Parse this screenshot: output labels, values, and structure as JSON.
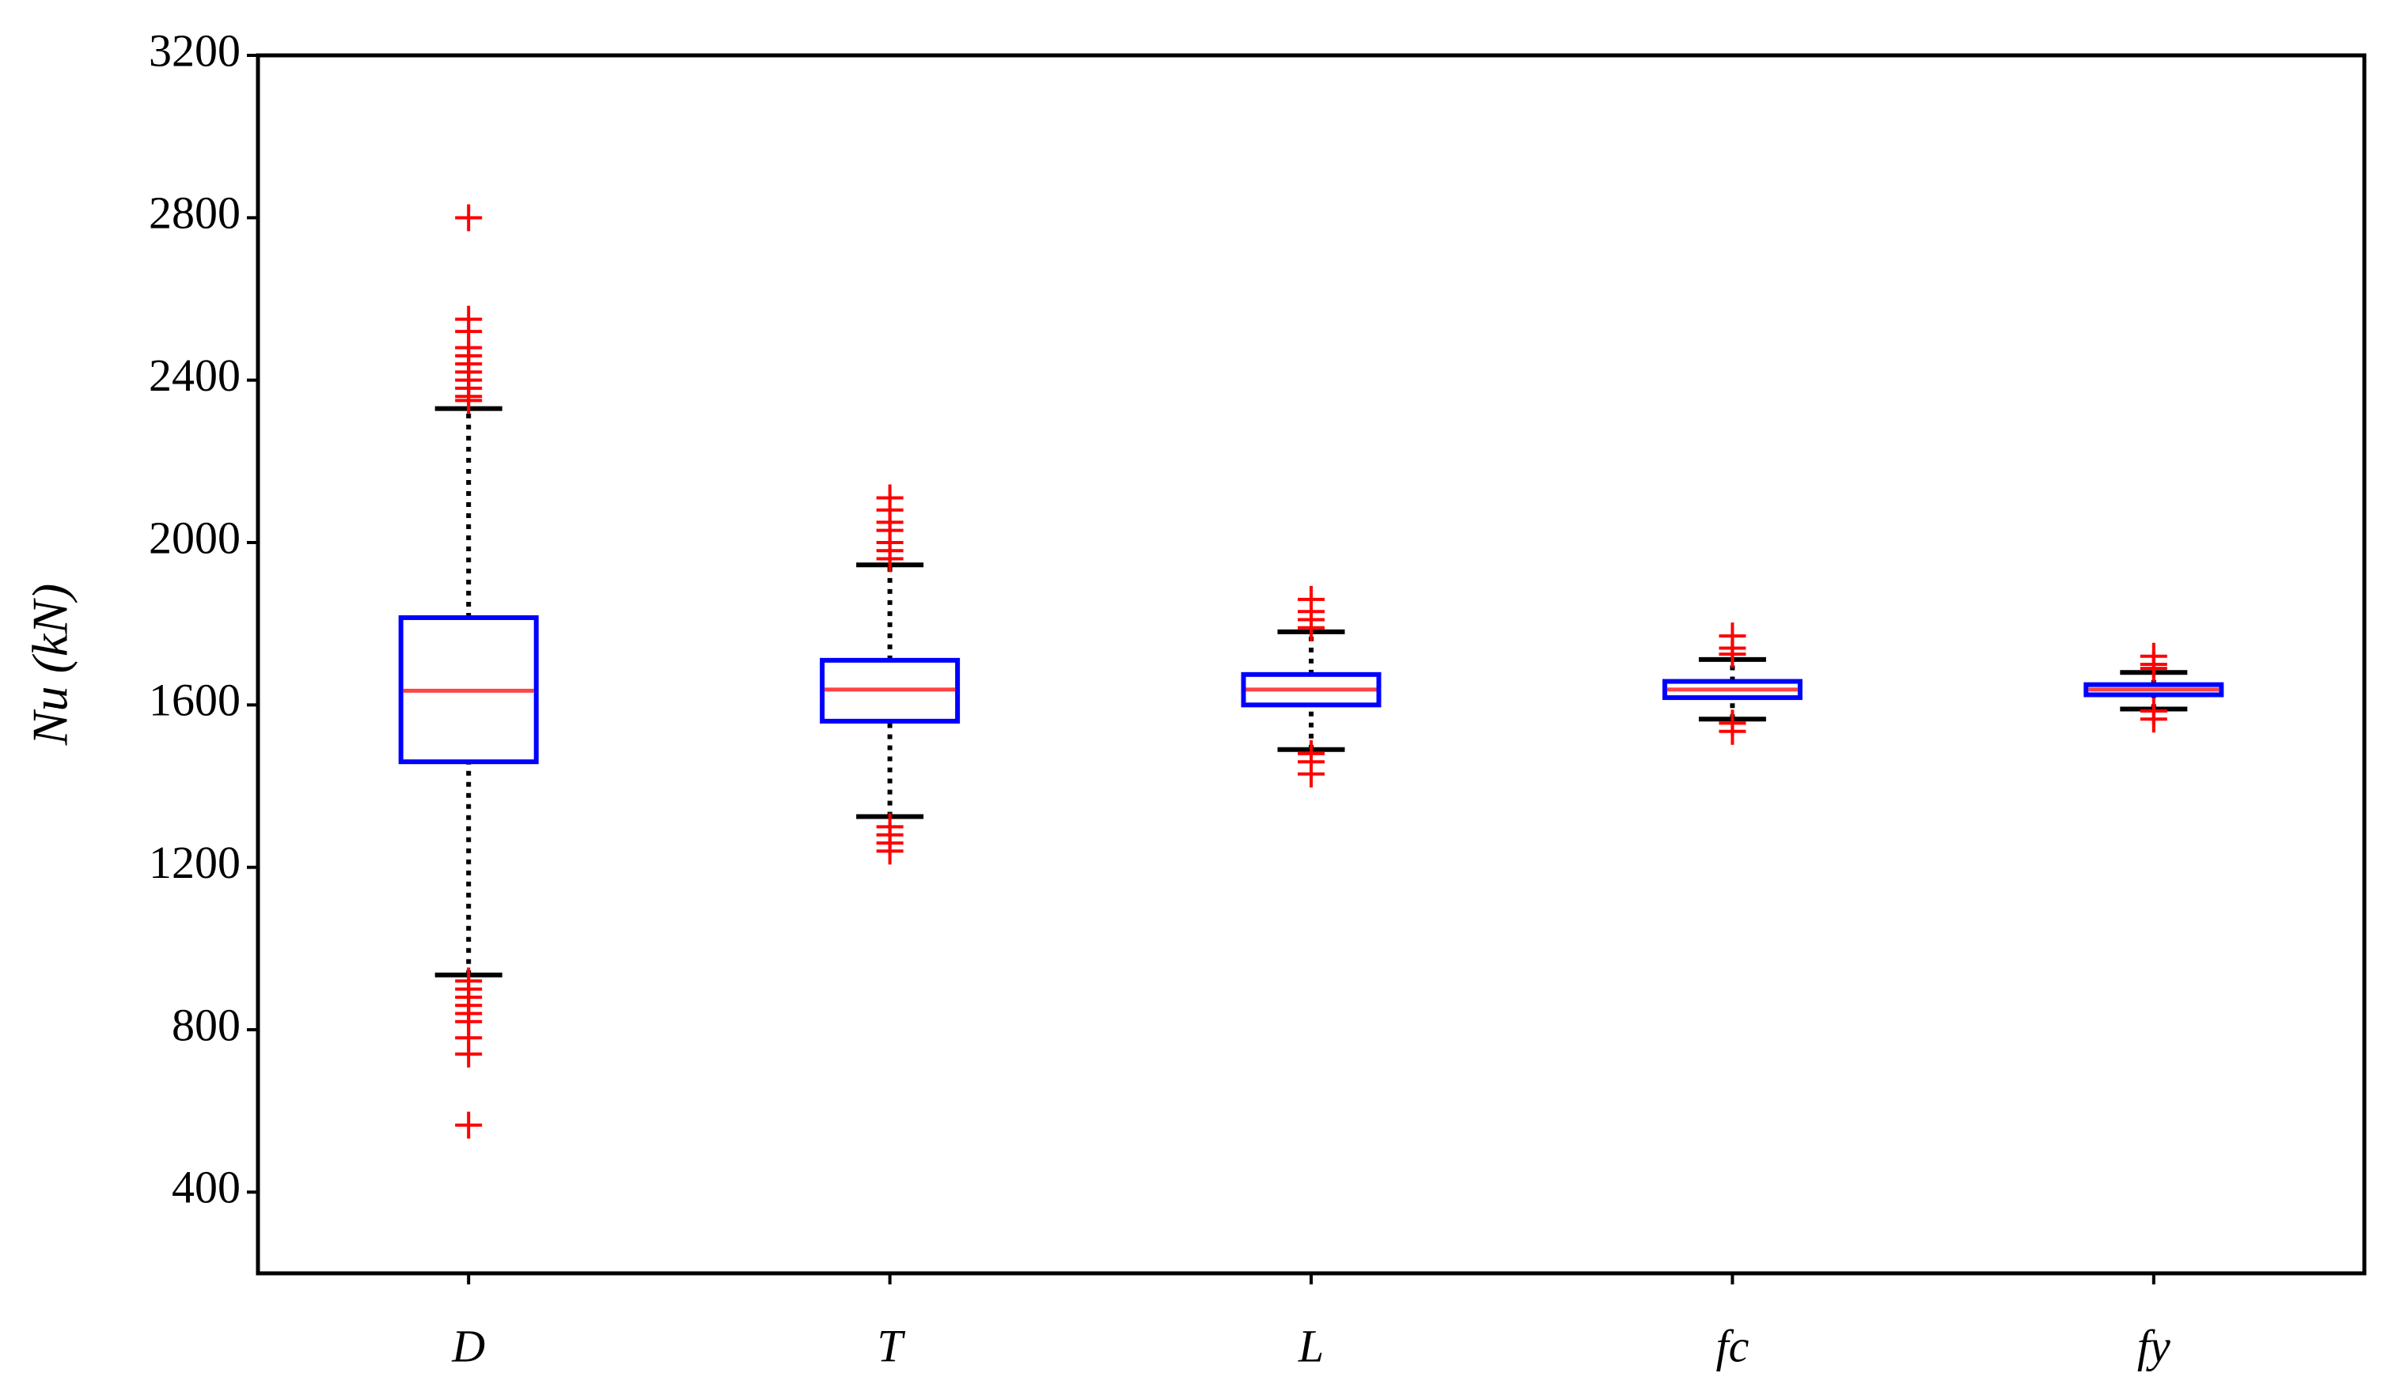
{
  "chart_data": {
    "type": "box",
    "y_label": "Nu (kN)",
    "categories": [
      "D",
      "T",
      "L",
      "fc",
      "fy"
    ],
    "q1": [
      1460,
      1560,
      1600,
      1618,
      1625
    ],
    "median": [
      1635,
      1638,
      1638,
      1638,
      1638
    ],
    "q3": [
      1815,
      1710,
      1675,
      1658,
      1650
    ],
    "whisker_low": [
      935,
      1325,
      1490,
      1565,
      1590
    ],
    "whisker_high": [
      2330,
      1945,
      1780,
      1712,
      1680
    ],
    "outliers": [
      [
        2800,
        2550,
        2520,
        2480,
        2460,
        2440,
        2420,
        2400,
        2380,
        2360,
        2350,
        920,
        900,
        880,
        860,
        840,
        820,
        780,
        740,
        565
      ],
      [
        2110,
        2080,
        2050,
        2030,
        2000,
        1980,
        1960,
        1300,
        1280,
        1260,
        1240
      ],
      [
        1860,
        1830,
        1810,
        1790,
        1480,
        1460,
        1430
      ],
      [
        1770,
        1740,
        1725,
        1555,
        1535
      ],
      [
        1720,
        1700,
        1690,
        1585,
        1565
      ]
    ],
    "box_color": "#0000ff",
    "median_color": "#ff4444",
    "whisker_color": "#000000",
    "outlier_color": "#ff0000",
    "ylim": [
      200,
      3200
    ],
    "yticks": [
      400,
      800,
      1200,
      1600,
      2000,
      2400,
      2800,
      3200
    ]
  }
}
